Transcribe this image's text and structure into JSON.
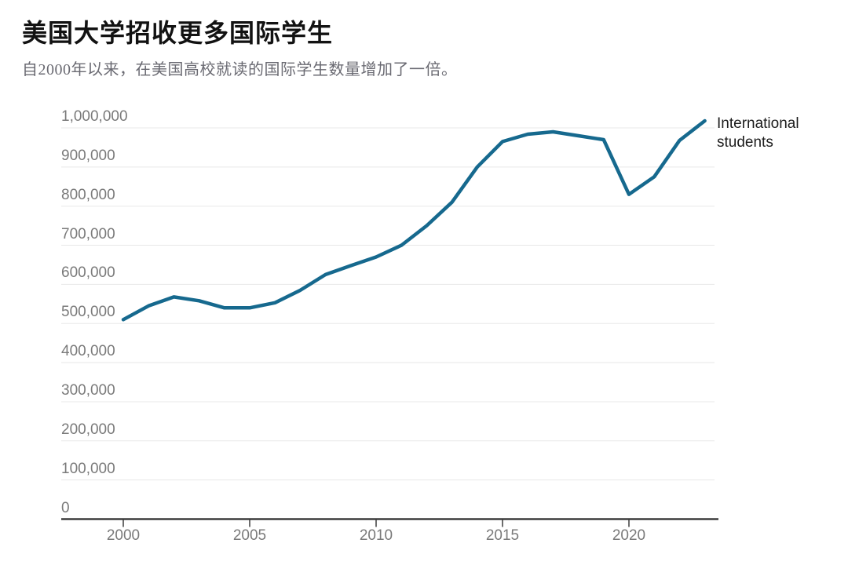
{
  "header": {
    "title": "美国大学招收更多国际学生",
    "subtitle": "自2000年以来，在美国高校就读的国际学生数量增加了一倍。"
  },
  "legend": {
    "label": "International students"
  },
  "chart_data": {
    "type": "line",
    "title": "美国大学招收更多国际学生",
    "subtitle": "自2000年以来，在美国高校就读的国际学生数量增加了一倍。",
    "xlabel": "",
    "ylabel": "",
    "grid": true,
    "legend_position": "right-of-line-end",
    "xlim": [
      2000,
      2023.6
    ],
    "ylim": [
      0,
      1080000
    ],
    "x_ticks": [
      2000,
      2005,
      2010,
      2015,
      2020
    ],
    "y_ticks": [
      {
        "value": 0,
        "label": "0"
      },
      {
        "value": 100000,
        "label": "100,000"
      },
      {
        "value": 200000,
        "label": "200,000"
      },
      {
        "value": 300000,
        "label": "300,000"
      },
      {
        "value": 400000,
        "label": "400,000"
      },
      {
        "value": 500000,
        "label": "500,000"
      },
      {
        "value": 600000,
        "label": "600,000"
      },
      {
        "value": 700000,
        "label": "700,000"
      },
      {
        "value": 800000,
        "label": "800,000"
      },
      {
        "value": 900000,
        "label": "900,000"
      },
      {
        "value": 1000000,
        "label": "1,000,000"
      }
    ],
    "series": [
      {
        "name": "International students",
        "x": [
          2000,
          2001,
          2002,
          2003,
          2004,
          2005,
          2006,
          2007,
          2008,
          2009,
          2010,
          2011,
          2012,
          2013,
          2014,
          2015,
          2016,
          2017,
          2018,
          2019,
          2020,
          2021,
          2022,
          2023
        ],
        "values": [
          510000,
          545000,
          568000,
          558000,
          540000,
          540000,
          553000,
          585000,
          625000,
          648000,
          670000,
          700000,
          750000,
          810000,
          900000,
          965000,
          984000,
          990000,
          980000,
          970000,
          830000,
          875000,
          968000,
          1018000
        ]
      }
    ],
    "colors": {
      "line": "#16698e",
      "axis": "#3c3c3c",
      "gridline": "#e8e8e8",
      "tick_text": "#7a7a7a"
    }
  }
}
